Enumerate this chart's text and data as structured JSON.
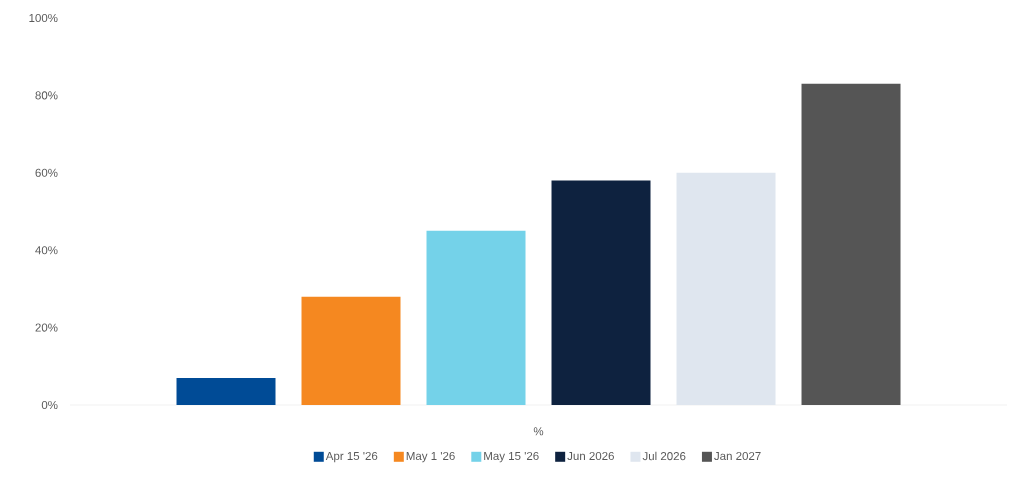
{
  "chart_data": {
    "type": "bar",
    "categories": [
      "%"
    ],
    "series": [
      {
        "name": "Apr 15 '26",
        "color": "#004b96",
        "values": [
          7
        ]
      },
      {
        "name": "May 1 '26",
        "color": "#f58820",
        "values": [
          28
        ]
      },
      {
        "name": "May 15 '26",
        "color": "#74d2e9",
        "values": [
          45
        ]
      },
      {
        "name": "Jun 2026",
        "color": "#0e223f",
        "values": [
          58
        ]
      },
      {
        "name": "Jul 2026",
        "color": "#dfe6ef",
        "values": [
          60
        ]
      },
      {
        "name": "Jan 2027",
        "color": "#555555",
        "values": [
          83
        ]
      }
    ],
    "ylim": [
      0,
      100
    ],
    "yticks": [
      {
        "value": 0,
        "label": "0%"
      },
      {
        "value": 20,
        "label": "20%"
      },
      {
        "value": 40,
        "label": "40%"
      },
      {
        "value": 60,
        "label": "60%"
      },
      {
        "value": 80,
        "label": "80%"
      },
      {
        "value": 100,
        "label": "100%"
      }
    ],
    "legend": "bottom",
    "grid": false
  }
}
